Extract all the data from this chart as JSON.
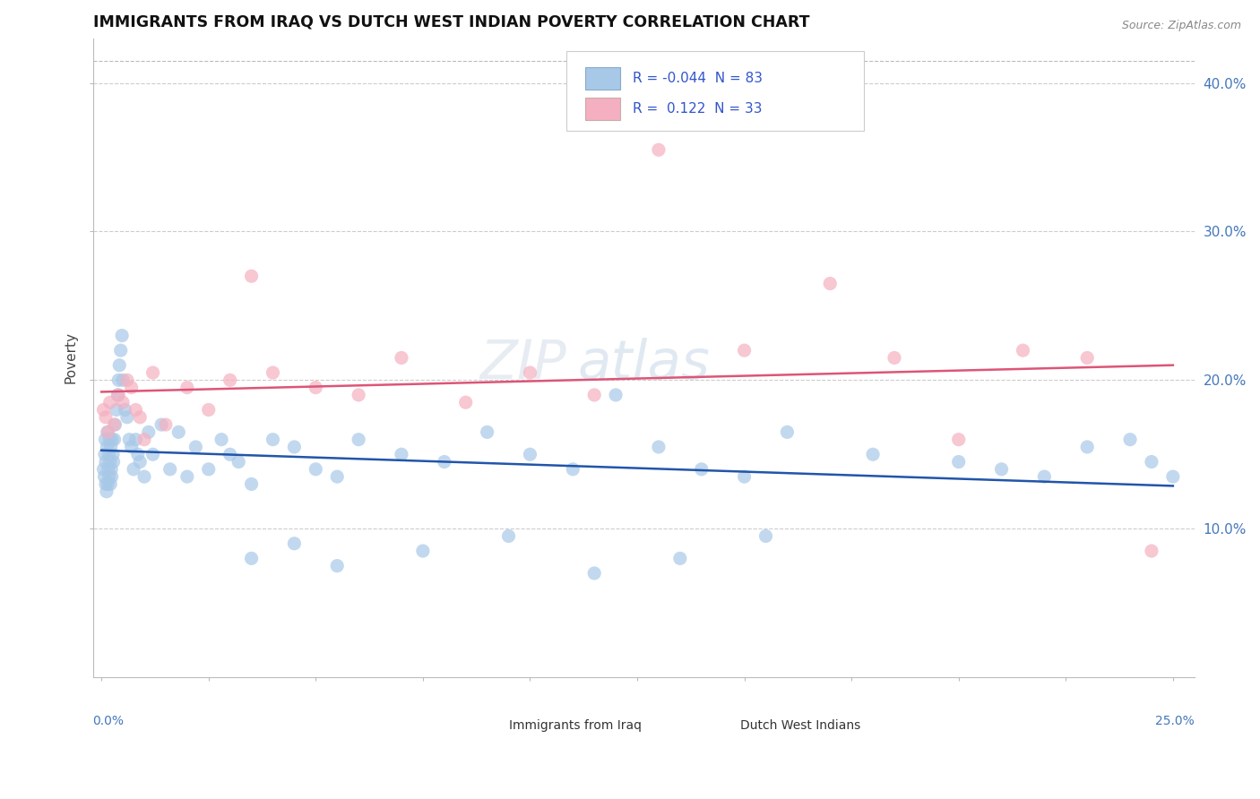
{
  "title": "IMMIGRANTS FROM IRAQ VS DUTCH WEST INDIAN POVERTY CORRELATION CHART",
  "source": "Source: ZipAtlas.com",
  "ylabel": "Poverty",
  "xlim": [
    0.0,
    25.0
  ],
  "ylim": [
    0.0,
    42.0
  ],
  "yticks": [
    10.0,
    20.0,
    30.0,
    40.0
  ],
  "blue_color": "#a8c8e8",
  "blue_line_color": "#2255aa",
  "pink_color": "#f4b0c0",
  "pink_line_color": "#dd5577",
  "watermark_color": "#dde4ee",
  "watermark_alpha": 0.7,
  "blue_R": -0.044,
  "blue_N": 83,
  "pink_R": 0.122,
  "pink_N": 33,
  "blue_x": [
    0.05,
    0.07,
    0.08,
    0.09,
    0.1,
    0.1,
    0.12,
    0.13,
    0.14,
    0.15,
    0.16,
    0.17,
    0.18,
    0.19,
    0.2,
    0.21,
    0.22,
    0.23,
    0.24,
    0.25,
    0.27,
    0.28,
    0.3,
    0.32,
    0.35,
    0.38,
    0.4,
    0.42,
    0.45,
    0.48,
    0.5,
    0.55,
    0.6,
    0.65,
    0.7,
    0.75,
    0.8,
    0.85,
    0.9,
    1.0,
    1.1,
    1.2,
    1.4,
    1.6,
    1.8,
    2.0,
    2.2,
    2.5,
    2.8,
    3.0,
    3.2,
    3.5,
    4.0,
    4.5,
    5.0,
    5.5,
    6.0,
    7.0,
    8.0,
    9.0,
    10.0,
    11.0,
    12.0,
    13.0,
    14.0,
    15.0,
    16.0,
    18.0,
    20.0,
    21.0,
    22.0,
    23.0,
    24.0,
    24.5,
    25.0,
    3.5,
    4.5,
    5.5,
    7.5,
    9.5,
    11.5,
    13.5,
    15.5
  ],
  "blue_y": [
    14.0,
    13.5,
    15.0,
    16.0,
    14.5,
    13.0,
    12.5,
    15.5,
    16.5,
    13.0,
    14.0,
    15.0,
    13.5,
    16.0,
    14.5,
    13.0,
    15.5,
    14.0,
    13.5,
    16.0,
    15.0,
    14.5,
    16.0,
    17.0,
    18.0,
    19.0,
    20.0,
    21.0,
    22.0,
    23.0,
    20.0,
    18.0,
    17.5,
    16.0,
    15.5,
    14.0,
    16.0,
    15.0,
    14.5,
    13.5,
    16.5,
    15.0,
    17.0,
    14.0,
    16.5,
    13.5,
    15.5,
    14.0,
    16.0,
    15.0,
    14.5,
    13.0,
    16.0,
    15.5,
    14.0,
    13.5,
    16.0,
    15.0,
    14.5,
    16.5,
    15.0,
    14.0,
    19.0,
    15.5,
    14.0,
    13.5,
    16.5,
    15.0,
    14.5,
    14.0,
    13.5,
    15.5,
    16.0,
    14.5,
    13.5,
    8.0,
    9.0,
    7.5,
    8.5,
    9.5,
    7.0,
    8.0,
    9.5
  ],
  "pink_x": [
    0.05,
    0.1,
    0.15,
    0.2,
    0.3,
    0.4,
    0.5,
    0.6,
    0.7,
    0.8,
    0.9,
    1.0,
    1.2,
    1.5,
    2.0,
    2.5,
    3.0,
    3.5,
    4.0,
    5.0,
    6.0,
    7.0,
    8.5,
    10.0,
    11.5,
    13.0,
    15.0,
    17.0,
    18.5,
    20.0,
    21.5,
    23.0,
    24.5
  ],
  "pink_y": [
    18.0,
    17.5,
    16.5,
    18.5,
    17.0,
    19.0,
    18.5,
    20.0,
    19.5,
    18.0,
    17.5,
    16.0,
    20.5,
    17.0,
    19.5,
    18.0,
    20.0,
    27.0,
    20.5,
    19.5,
    19.0,
    21.5,
    18.5,
    20.5,
    19.0,
    35.5,
    22.0,
    26.5,
    21.5,
    16.0,
    22.0,
    21.5,
    8.5
  ]
}
